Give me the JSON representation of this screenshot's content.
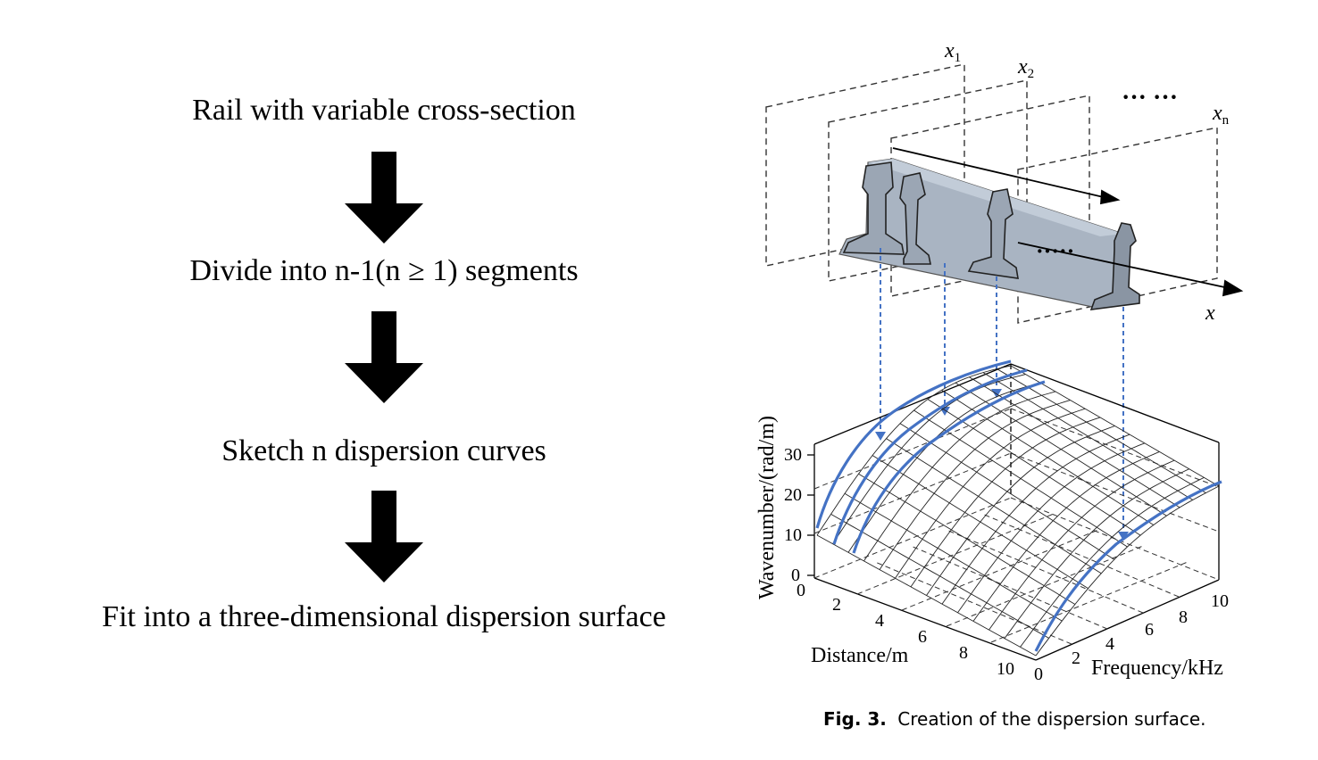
{
  "flowchart": {
    "steps": [
      "Rail with variable cross-section",
      "Divide into n-1(n ≥ 1) segments",
      "Sketch n dispersion curves",
      "Fit into a three-dimensional dispersion surface"
    ]
  },
  "figure": {
    "plane_labels": {
      "x1": "x",
      "x1_sub": "1",
      "x2": "x",
      "x2_sub": "2",
      "xn": "x",
      "xn_sub": "n",
      "ellipsis": "···  ···",
      "ellipsis_rail": "·····",
      "axis_x": "x"
    },
    "axes": {
      "z_label": "Wavenumber/(rad/m)",
      "z_ticks": [
        "0",
        "10",
        "20",
        "30"
      ],
      "distance_label": "Distance/m",
      "distance_ticks": [
        "0",
        "2",
        "4",
        "6",
        "8",
        "10"
      ],
      "frequency_label": "Frequency/kHz",
      "frequency_ticks": [
        "0",
        "2",
        "4",
        "6",
        "8",
        "10"
      ]
    },
    "colors": {
      "curve": "#4472c4",
      "rail": "#a9b4c2",
      "rail_dark": "#8a95a3"
    },
    "caption_label": "Fig. 3.",
    "caption_text": "Creation of the dispersion surface."
  }
}
